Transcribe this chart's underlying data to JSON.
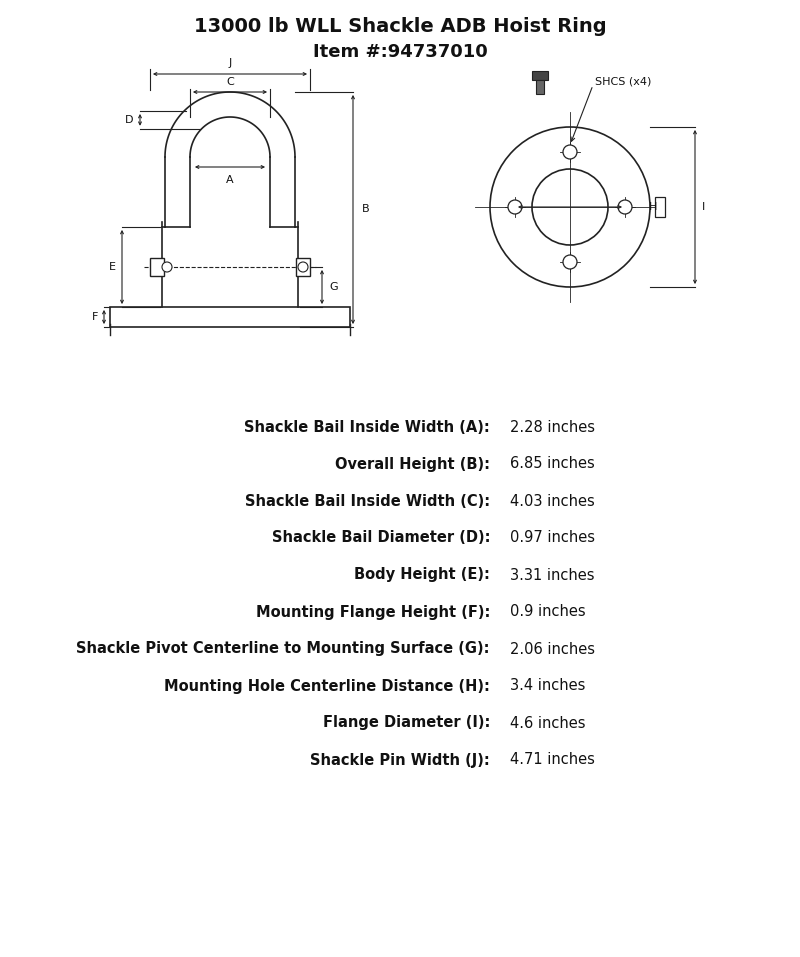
{
  "title_line1": "13000 lb WLL Shackle ADB Hoist Ring",
  "title_line2": "Item #:94737010",
  "title_fontsize": 14,
  "subtitle_fontsize": 13,
  "specs": [
    {
      "label": "Shackle Bail Inside Width (A):",
      "value": "2.28 inches"
    },
    {
      "label": "Overall Height (B):",
      "value": "6.85 inches"
    },
    {
      "label": "Shackle Bail Inside Width (C):",
      "value": "4.03 inches"
    },
    {
      "label": "Shackle Bail Diameter (D):",
      "value": "0.97 inches"
    },
    {
      "label": "Body Height (E):",
      "value": "3.31 inches"
    },
    {
      "label": "Mounting Flange Height (F):",
      "value": "0.9 inches"
    },
    {
      "label": "Shackle Pivot Centerline to Mounting Surface (G):",
      "value": "2.06 inches"
    },
    {
      "label": "Mounting Hole Centerline Distance (H):",
      "value": "3.4 inches"
    },
    {
      "label": "Flange Diameter (I):",
      "value": "4.6 inches"
    },
    {
      "label": "Shackle Pin Width (J):",
      "value": "4.71 inches"
    }
  ],
  "bg_color": "#ffffff",
  "line_color": "#222222",
  "text_color": "#111111",
  "spec_label_fontsize": 10.5,
  "spec_value_fontsize": 10.5,
  "fig_width": 8.0,
  "fig_height": 9.57
}
